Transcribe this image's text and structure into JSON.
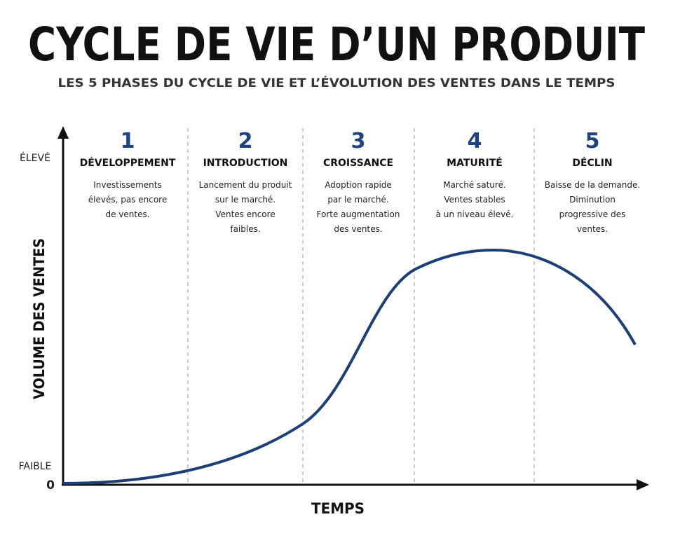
{
  "header": {
    "title": "CYCLE DE VIE D’UN PRODUIT",
    "subtitle": "LES 5 PHASES DU CYCLE DE VIE ET L’ÉVOLUTION DES VENTES DANS LE TEMPS"
  },
  "axes": {
    "y_label": "VOLUME DES VENTES",
    "x_label": "TEMPS",
    "high": "ÉLEVÉ",
    "low": "FAIBLE",
    "zero": "0"
  },
  "phases": [
    {
      "number": "1",
      "name": "DÉVELOPPEMENT",
      "description": [
        "Investissements",
        "élevés, pas encore",
        "de ventes."
      ]
    },
    {
      "number": "2",
      "name": "INTRODUCTION",
      "description": [
        "Lancement du produit",
        "sur le marché.",
        "Ventes encore",
        "faibles."
      ]
    },
    {
      "number": "3",
      "name": "CROISSANCE",
      "description": [
        "Adoption rapide",
        "par le marché.",
        "Forte augmentation",
        "des ventes."
      ]
    },
    {
      "number": "4",
      "name": "MATURITÉ",
      "description": [
        "Marché saturé.",
        "Ventes stables",
        "à un niveau élevé."
      ]
    },
    {
      "number": "5",
      "name": "DÉCLIN",
      "description": [
        "Baisse de la demande.",
        "Diminution",
        "progressive des",
        "ventes."
      ]
    }
  ]
}
